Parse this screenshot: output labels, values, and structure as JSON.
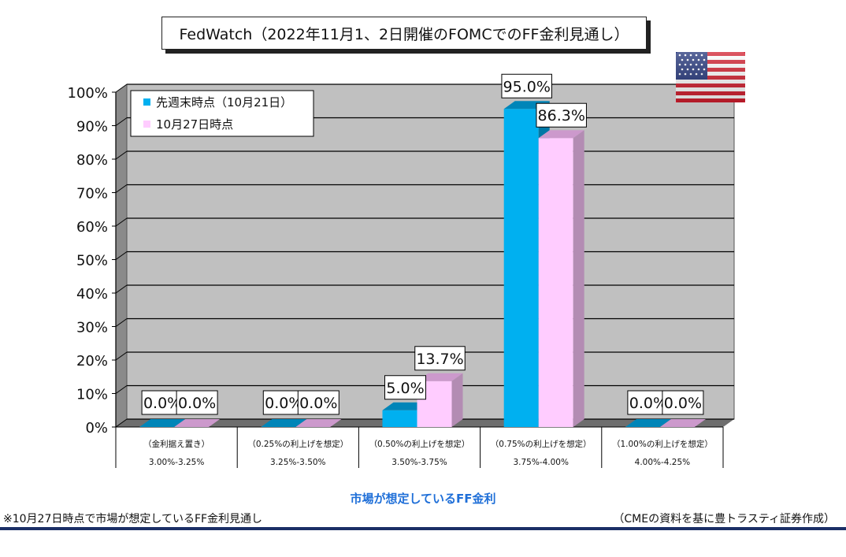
{
  "header": {
    "title": "FedWatch（2022年11月1、2日開催のFOMCでのFF金利見通し）"
  },
  "footer": {
    "axis_title": "市場が想定しているFF金利",
    "note": "※10月27日時点で市場が想定しているFF金利見通し",
    "credit": "（CMEの資料を基に豊トラスティ証券作成）"
  },
  "flag": {
    "icon": "us-flag-icon"
  },
  "chart_data": {
    "type": "bar",
    "categories": [
      {
        "line1": "（金利据え置き）",
        "line2": "3.00%-3.25%"
      },
      {
        "line1": "（0.25%の利上げを想定）",
        "line2": "3.25%-3.50%"
      },
      {
        "line1": "（0.50%の利上げを想定）",
        "line2": "3.50%-3.75%"
      },
      {
        "line1": "（0.75%の利上げを想定）",
        "line2": "3.75%-4.00%"
      },
      {
        "line1": "（1.00%の利上げを想定）",
        "line2": "4.00%-4.25%"
      }
    ],
    "series": [
      {
        "name": "先週末時点（10月21日）",
        "values": [
          0.0,
          0.0,
          5.0,
          95.0,
          0.0
        ],
        "labels": [
          "0.0%",
          "0.0%",
          "5.0%",
          "95.0%",
          "0.0%"
        ],
        "color": "#00b0f0",
        "top": "#0085b8",
        "side": "#0078a6"
      },
      {
        "name": "10月27日時点",
        "values": [
          0.0,
          0.0,
          13.7,
          86.3,
          0.0
        ],
        "labels": [
          "0.0%",
          "0.0%",
          "13.7%",
          "86.3%",
          "0.0%"
        ],
        "color": "#ffccff",
        "top": "#cc99cc",
        "side": "#b38cb3"
      }
    ],
    "ylim": [
      0,
      100
    ],
    "yticks": [
      "0%",
      "10%",
      "20%",
      "30%",
      "40%",
      "50%",
      "60%",
      "70%",
      "80%",
      "90%",
      "100%"
    ],
    "grid": true,
    "legend_position": "top-left"
  }
}
